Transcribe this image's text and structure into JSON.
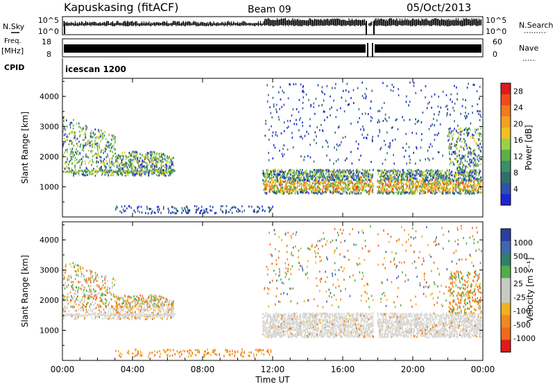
{
  "header": {
    "station": "Kapuskasing (fitACF)",
    "beam": "Beam 09",
    "date": "05/Oct/2013"
  },
  "panels": {
    "nsky_label": "N.Sky",
    "nsky_ticks": [
      "10^5",
      "10^0"
    ],
    "nsearch_label": "N.Search",
    "nsearch_ticks": [
      "10^5",
      "10^0"
    ],
    "freq_label_line1": "Freq.",
    "freq_label_line2": "[MHz]",
    "freq_ticks": [
      "18",
      "8"
    ],
    "nave_label": "Nave",
    "nave_ticks": [
      "60",
      "0"
    ],
    "cpid_label": "CPID",
    "cpid_value": "icescan 1200"
  },
  "colors": {
    "power_scale": [
      "#1d24d6",
      "#3050b0",
      "#2f6f6a",
      "#3b8f6a",
      "#5cb04a",
      "#9bd04a",
      "#f0c020",
      "#f2a020",
      "#f07a20",
      "#f04a1a",
      "#e01a1a"
    ],
    "velocity_scale": [
      "#2b3fa0",
      "#3f67b0",
      "#2f7f6a",
      "#4fae4a",
      "#c8c8c4",
      "#c8c8c4",
      "#f0b020",
      "#f08a20",
      "#f06a1a",
      "#e01a1a"
    ],
    "gray_scatter": "#d6d6d2"
  },
  "chart_data": [
    {
      "type": "heatmap",
      "name": "power",
      "xlabel": "Time UT",
      "ylabel": "Slant Range [km]",
      "x_range_hours": [
        0,
        24
      ],
      "y_range_km": [
        0,
        4600
      ],
      "yticks": [
        1000,
        2000,
        3000,
        4000
      ],
      "ytick_labels": [
        "1000",
        "2000",
        "3000",
        "4000"
      ],
      "colorbar_label": "Power [dB]",
      "colorbar_ticks": [
        4,
        8,
        12,
        16,
        20,
        24,
        28
      ],
      "colorbar_tick_labels": [
        "4",
        "8",
        "12",
        "16",
        "20",
        "24",
        "28"
      ],
      "colorbar_range": [
        0,
        30
      ]
    },
    {
      "type": "heatmap",
      "name": "velocity",
      "xlabel": "Time UT",
      "ylabel": "Slant Range [km]",
      "x_range_hours": [
        0,
        24
      ],
      "y_range_km": [
        0,
        4600
      ],
      "yticks": [
        1000,
        2000,
        3000,
        4000
      ],
      "ytick_labels": [
        "1000",
        "2000",
        "3000",
        "4000"
      ],
      "xticks": [
        "00:00",
        "04:00",
        "08:00",
        "12:00",
        "16:00",
        "20:00",
        "00:00"
      ],
      "colorbar_label": "Velocity [m s⁻¹]",
      "colorbar_tick_labels": [
        "1000",
        "500",
        "100",
        "25",
        "-25",
        "-100",
        "-500",
        "-1000"
      ]
    }
  ]
}
